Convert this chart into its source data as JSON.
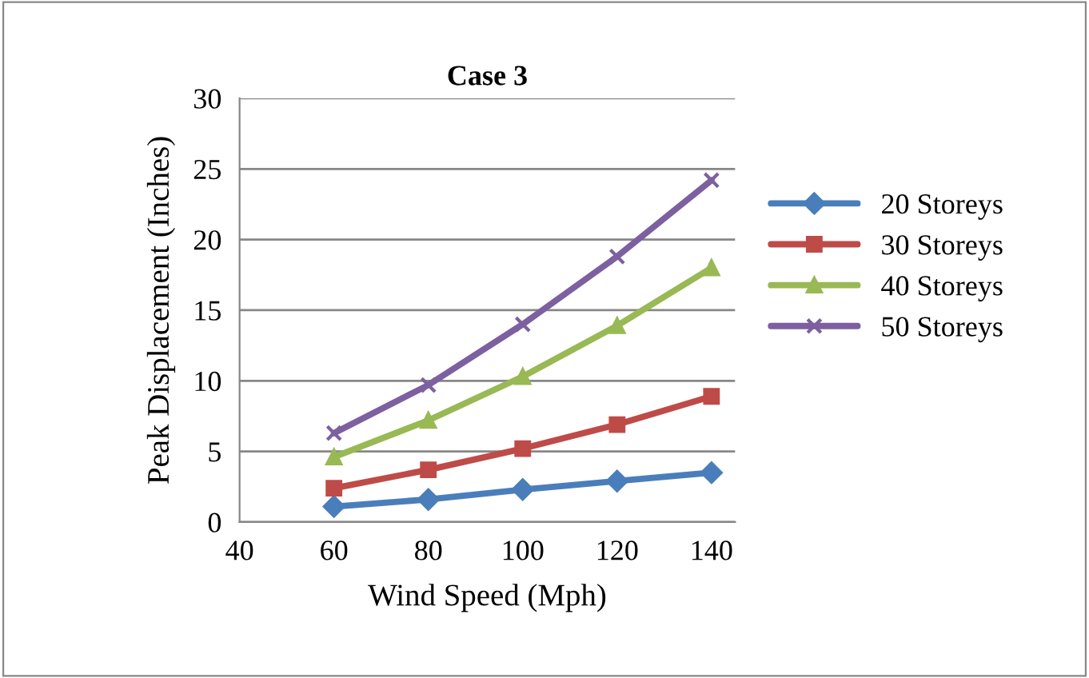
{
  "chart_data": {
    "type": "line",
    "title": "Case 3",
    "xlabel": "Wind Speed (Mph)",
    "ylabel": "Peak Displacement (Inches)",
    "x": [
      60,
      80,
      100,
      120,
      140
    ],
    "xlim": [
      40,
      145
    ],
    "xticks": [
      40,
      60,
      80,
      100,
      120,
      140
    ],
    "ylim": [
      0,
      30
    ],
    "yticks": [
      0,
      5,
      10,
      15,
      20,
      25,
      30
    ],
    "grid": "y",
    "legend": "right",
    "line_style": "solid",
    "series": [
      {
        "name": "20 Storeys",
        "color": "#4a7ebb",
        "marker": "diamond",
        "values": [
          1.1,
          1.6,
          2.3,
          2.9,
          3.5
        ]
      },
      {
        "name": "30 Storeys",
        "color": "#be4b48",
        "marker": "square",
        "values": [
          2.4,
          3.7,
          5.2,
          6.9,
          8.9
        ]
      },
      {
        "name": "40 Storeys",
        "color": "#98b954",
        "marker": "triangle",
        "values": [
          4.6,
          7.2,
          10.3,
          13.9,
          18.0
        ]
      },
      {
        "name": "50 Storeys",
        "color": "#7d60a0",
        "marker": "cross",
        "values": [
          6.3,
          9.7,
          14.0,
          18.8,
          24.2
        ]
      }
    ]
  }
}
